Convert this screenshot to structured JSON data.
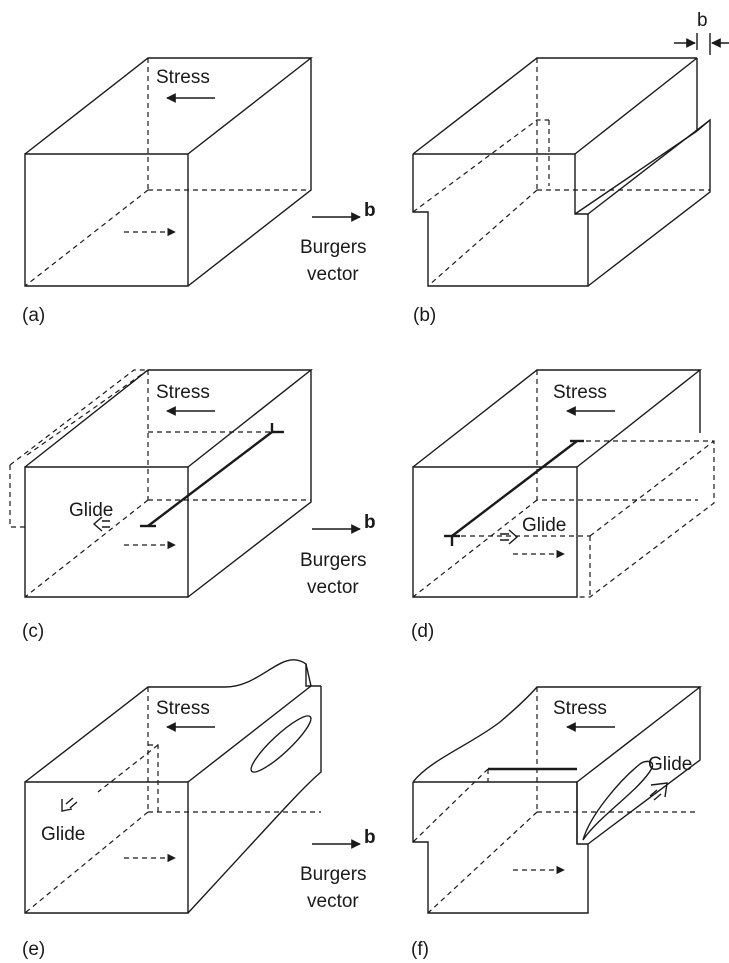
{
  "panels": [
    {
      "id": "a",
      "label": "(a)",
      "stress": "Stress"
    },
    {
      "id": "b",
      "label": "(b)",
      "dimension": "b"
    },
    {
      "id": "c",
      "label": "(c)",
      "stress": "Stress",
      "glide": "Glide"
    },
    {
      "id": "d",
      "label": "(d)",
      "stress": "Stress",
      "glide": "Glide"
    },
    {
      "id": "e",
      "label": "(e)",
      "stress": "Stress",
      "glide": "Glide"
    },
    {
      "id": "f",
      "label": "(f)",
      "stress": "Stress",
      "glide": "Glide"
    }
  ],
  "burgers": {
    "symbol": "b",
    "line1": "Burgers",
    "line2": "vector"
  }
}
